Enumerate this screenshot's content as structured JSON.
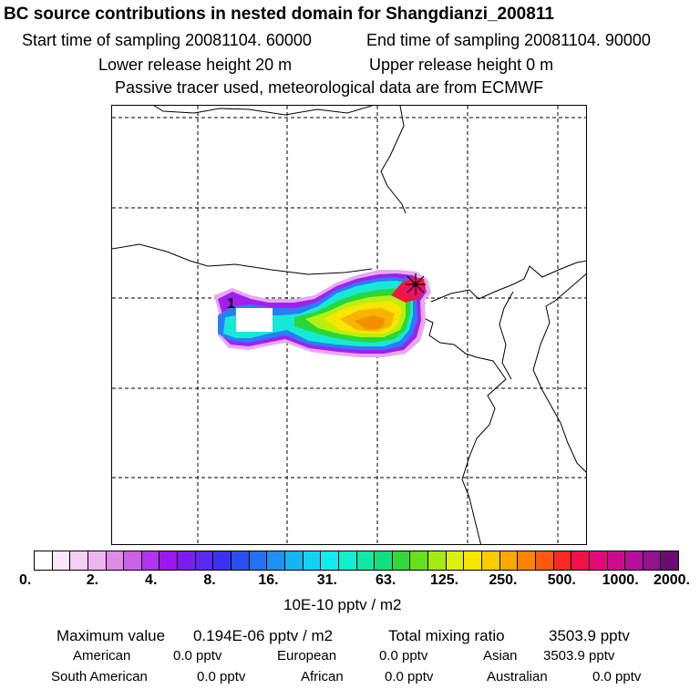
{
  "header": {
    "title": "BC  source contributions in nested domain for Shangdianzi_200811",
    "start_sampling": "Start time of sampling 20081104. 60000",
    "end_sampling": "End time of sampling 20081104. 90000",
    "lower_release": "Lower release height   20 m",
    "upper_release": "Upper release height    0 m",
    "tracer_note": "Passive tracer used, meteorological data are from ECMWF"
  },
  "colorbar": {
    "colors": [
      "#ffffff",
      "#fbe8fb",
      "#f5d0f5",
      "#eeb6ee",
      "#e18be8",
      "#cc60e8",
      "#b134ee",
      "#9a17ee",
      "#7b1df0",
      "#5a28f2",
      "#3b32f0",
      "#2a4ff0",
      "#2472f2",
      "#1e92f2",
      "#16b6f2",
      "#12d4f2",
      "#12ecf0",
      "#10f0cc",
      "#10e8a4",
      "#12e07c",
      "#30d838",
      "#66e01c",
      "#a6ea14",
      "#dcf00c",
      "#f6e600",
      "#fccc00",
      "#fca800",
      "#fc8400",
      "#fc5a10",
      "#fc2a22",
      "#f21048",
      "#e40a76",
      "#cc0c8c",
      "#b4109c",
      "#94128e",
      "#6a0c70"
    ],
    "tick_labels": [
      "0.",
      "2.",
      "4.",
      "8.",
      "16.",
      "31.",
      "63.",
      "125.",
      "250.",
      "500.",
      "1000.",
      "2000."
    ],
    "units": "10E-10 pptv / m2"
  },
  "summary": {
    "max_label": "Maximum value",
    "max_value": "0.194E-06 pptv / m2",
    "total_label": "Total mixing ratio",
    "total_value": "3503.9 pptv"
  },
  "regions": [
    {
      "name": "American",
      "value": "0.0 pptv"
    },
    {
      "name": "European",
      "value": "0.0 pptv"
    },
    {
      "name": "Asian",
      "value": "3503.9 pptv"
    },
    {
      "name": "South American",
      "value": "0.0 pptv"
    },
    {
      "name": "African",
      "value": "0.0 pptv"
    },
    {
      "name": "Australian",
      "value": "0.0 pptv"
    }
  ],
  "map": {
    "receptor_marker": "star",
    "max_source_area": "1",
    "plume_colors": {
      "halo": "#e8a8f0",
      "outer": "#a020f0",
      "blue": "#2a7df5",
      "cyan": "#18e8d8",
      "green": "#28d838",
      "lime": "#b8f010",
      "yellow": "#f8e600",
      "orange": "#f8b400",
      "red": "#f01840",
      "magenta": "#e8106c"
    }
  }
}
